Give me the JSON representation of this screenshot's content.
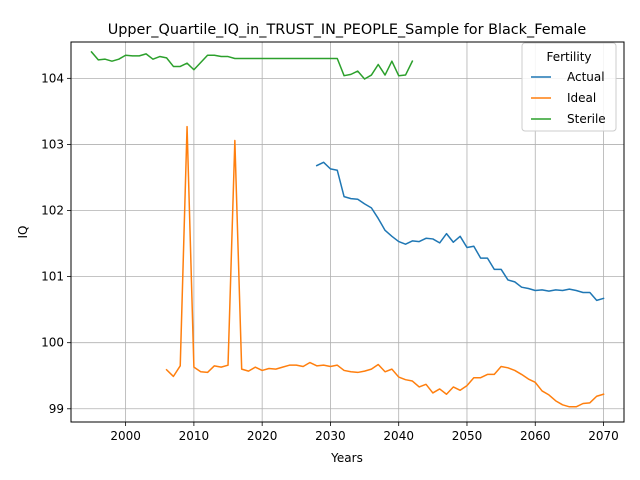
{
  "chart_data": {
    "type": "line",
    "title": "Upper_Quartile_IQ_in_TRUST_IN_PEOPLE_Sample for Black_Female",
    "xlabel": "Years",
    "ylabel": "IQ",
    "xlim": [
      1992,
      2073
    ],
    "ylim": [
      98.8,
      104.55
    ],
    "x_ticks": [
      2000,
      2010,
      2020,
      2030,
      2040,
      2050,
      2060,
      2070
    ],
    "y_ticks": [
      99,
      100,
      101,
      102,
      103,
      104
    ],
    "grid": true,
    "legend": {
      "title": "Fertility",
      "placement": "top-right"
    },
    "series": [
      {
        "name": "Actual",
        "color": "#1f77b4",
        "x": [
          2028,
          2029,
          2030,
          2031,
          2032,
          2033,
          2034,
          2035,
          2036,
          2037,
          2038,
          2039,
          2040,
          2041,
          2042,
          2043,
          2044,
          2045,
          2046,
          2047,
          2048,
          2049,
          2050,
          2051,
          2052,
          2053,
          2054,
          2055,
          2056,
          2057,
          2058,
          2059,
          2060,
          2061,
          2062,
          2063,
          2064,
          2065,
          2066,
          2067,
          2068,
          2069,
          2070
        ],
        "values": [
          102.68,
          102.73,
          102.63,
          102.61,
          102.21,
          102.18,
          102.17,
          102.1,
          102.04,
          101.88,
          101.7,
          101.61,
          101.53,
          101.49,
          101.54,
          101.53,
          101.58,
          101.57,
          101.51,
          101.65,
          101.52,
          101.61,
          101.44,
          101.46,
          101.28,
          101.28,
          101.11,
          101.11,
          100.95,
          100.92,
          100.84,
          100.82,
          100.79,
          100.8,
          100.78,
          100.8,
          100.79,
          100.81,
          100.79,
          100.76,
          100.76,
          100.64,
          100.67
        ]
      },
      {
        "name": "Ideal",
        "color": "#ff7f0e",
        "x": [
          2006,
          2007,
          2008,
          2009,
          2010,
          2011,
          2012,
          2013,
          2014,
          2015,
          2016,
          2017,
          2018,
          2019,
          2020,
          2021,
          2022,
          2023,
          2024,
          2025,
          2026,
          2027,
          2028,
          2029,
          2030,
          2031,
          2032,
          2033,
          2034,
          2035,
          2036,
          2037,
          2038,
          2039,
          2040,
          2041,
          2042,
          2043,
          2044,
          2045,
          2046,
          2047,
          2048,
          2049,
          2050,
          2051,
          2052,
          2053,
          2054,
          2055,
          2056,
          2057,
          2058,
          2059,
          2060,
          2061,
          2062,
          2063,
          2064,
          2065,
          2066,
          2067,
          2068,
          2069,
          2070
        ],
        "values": [
          99.59,
          99.49,
          99.65,
          103.27,
          99.63,
          99.56,
          99.55,
          99.65,
          99.63,
          99.66,
          103.06,
          99.6,
          99.57,
          99.63,
          99.58,
          99.61,
          99.6,
          99.63,
          99.66,
          99.66,
          99.64,
          99.7,
          99.65,
          99.66,
          99.64,
          99.66,
          99.58,
          99.56,
          99.55,
          99.57,
          99.6,
          99.67,
          99.56,
          99.6,
          99.48,
          99.44,
          99.42,
          99.33,
          99.37,
          99.24,
          99.3,
          99.22,
          99.33,
          99.28,
          99.35,
          99.47,
          99.47,
          99.52,
          99.52,
          99.64,
          99.62,
          99.58,
          99.52,
          99.45,
          99.4,
          99.27,
          99.21,
          99.12,
          99.06,
          99.03,
          99.03,
          99.08,
          99.09,
          99.19,
          99.22
        ]
      },
      {
        "name": "Sterile",
        "color": "#2ca02c",
        "x": [
          1995,
          1996,
          1997,
          1998,
          1999,
          2000,
          2001,
          2002,
          2003,
          2004,
          2005,
          2006,
          2007,
          2008,
          2009,
          2010,
          2011,
          2012,
          2013,
          2014,
          2015,
          2016,
          2017,
          2018,
          2019,
          2020,
          2021,
          2022,
          2023,
          2024,
          2025,
          2026,
          2027,
          2028,
          2029,
          2030,
          2031,
          2032,
          2033,
          2034,
          2035,
          2036,
          2037,
          2038,
          2039,
          2040,
          2041,
          2042
        ],
        "values": [
          104.4,
          104.28,
          104.29,
          104.26,
          104.29,
          104.35,
          104.34,
          104.34,
          104.37,
          104.29,
          104.33,
          104.31,
          104.18,
          104.18,
          104.23,
          104.13,
          104.24,
          104.35,
          104.35,
          104.33,
          104.33,
          104.3,
          104.3,
          104.3,
          104.3,
          104.3,
          104.3,
          104.3,
          104.3,
          104.3,
          104.3,
          104.3,
          104.3,
          104.3,
          104.3,
          104.3,
          104.3,
          104.04,
          104.06,
          104.11,
          103.99,
          104.05,
          104.21,
          104.05,
          104.26,
          104.04,
          104.05,
          104.26
        ]
      }
    ]
  }
}
